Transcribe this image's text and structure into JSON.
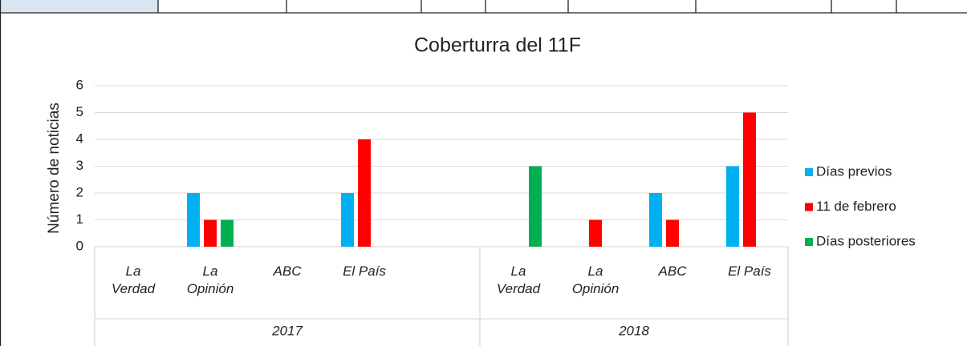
{
  "chart_data": {
    "type": "bar",
    "title": "Coberturra del 11F",
    "y_label": "Número de noticias",
    "category_groups": [
      {
        "name": "2017",
        "categories": [
          "La Verdad",
          "La Opinión",
          "ABC",
          "El País",
          null
        ]
      },
      {
        "name": "2018",
        "categories": [
          "La Verdad",
          "La Opinión",
          "ABC",
          "El País"
        ]
      }
    ],
    "series": [
      {
        "name": "Días previos",
        "color": "#00b0f0",
        "values": [
          0,
          2,
          0,
          2,
          null,
          0,
          0,
          2,
          3
        ]
      },
      {
        "name": "11 de febrero",
        "color": "#ff0000",
        "values": [
          0,
          1,
          0,
          4,
          null,
          0,
          1,
          1,
          5
        ]
      },
      {
        "name": "Días posteriores",
        "color": "#00b050",
        "values": [
          0,
          1,
          0,
          0,
          null,
          3,
          0,
          0,
          0
        ]
      }
    ],
    "ylim": [
      0,
      6
    ],
    "yticks": [
      0,
      1,
      2,
      3,
      4,
      5,
      6
    ],
    "grid": true,
    "legend": "right"
  }
}
